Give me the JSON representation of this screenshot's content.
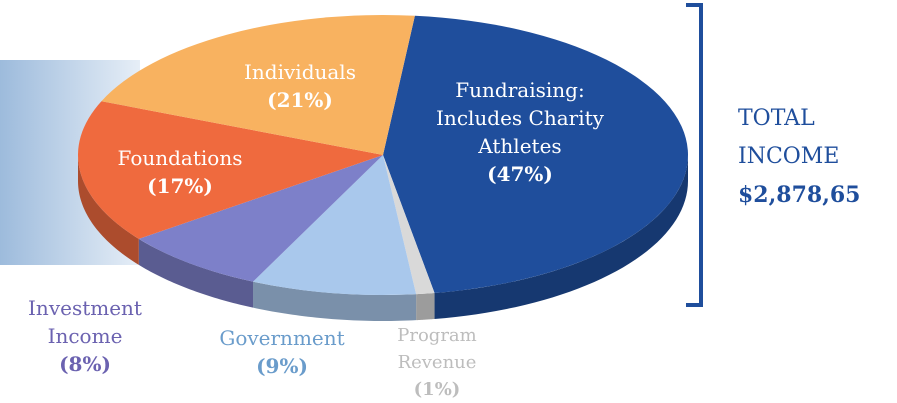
{
  "chart_data": {
    "type": "pie",
    "categories": [
      "Fundraising: Includes Charity Athletes",
      "Program Revenue",
      "Government",
      "Investment Income",
      "Foundations",
      "Individuals"
    ],
    "values": [
      47,
      1,
      9,
      8,
      17,
      21
    ],
    "value_labels": [
      "(47%)",
      "(1%)",
      "(9%)",
      "(8%)",
      "(17%)",
      "(21%)"
    ],
    "colors": [
      "#1f4e9c",
      "#d9d9d9",
      "#a9c8ec",
      "#7d80c9",
      "#ef6a3e",
      "#f8b260"
    ],
    "annotations": [
      "TOTAL INCOME",
      "$2,878,65"
    ]
  }
}
